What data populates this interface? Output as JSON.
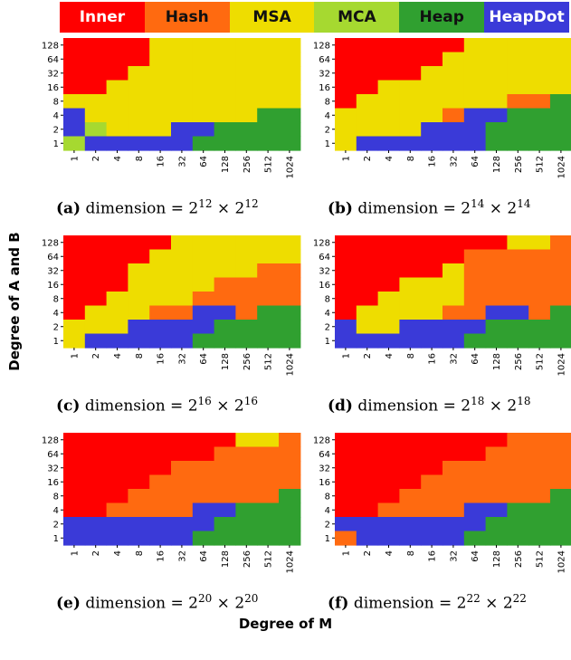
{
  "colors": {
    "Inner": "#ff0000",
    "Hash": "#ff6a10",
    "MSA": "#eedd00",
    "MCA": "#a6d930",
    "Heap": "#30a030",
    "HeapDot": "#3a3ad8"
  },
  "legend": [
    {
      "label": "Inner",
      "bg": "#ff0000",
      "fg": "#ffffff"
    },
    {
      "label": "Hash",
      "bg": "#ff6a10",
      "fg": "#111111"
    },
    {
      "label": "MSA",
      "bg": "#eedd00",
      "fg": "#111111"
    },
    {
      "label": "MCA",
      "bg": "#a6d930",
      "fg": "#111111"
    },
    {
      "label": "Heap",
      "bg": "#30a030",
      "fg": "#111111"
    },
    {
      "label": "HeapDot",
      "bg": "#3a3ad8",
      "fg": "#ffffff"
    }
  ],
  "ylabel": "Degree of A and B",
  "xlabel": "Degree of M",
  "chart_data": [
    {
      "type": "heatmap",
      "caption": {
        "tag": "(a)",
        "text": "dimension = ",
        "base": "2",
        "exp": "12"
      },
      "x": [
        "1",
        "2",
        "4",
        "8",
        "16",
        "32",
        "64",
        "128",
        "256",
        "512",
        "1024"
      ],
      "y": [
        "1",
        "2",
        "4",
        "8",
        "16",
        "32",
        "64",
        "128"
      ],
      "cells": [
        [
          "I",
          "I",
          "I",
          "I",
          "M",
          "M",
          "M",
          "M",
          "M",
          "M",
          "M"
        ],
        [
          "I",
          "I",
          "I",
          "I",
          "M",
          "M",
          "M",
          "M",
          "M",
          "M",
          "M"
        ],
        [
          "I",
          "I",
          "I",
          "M",
          "M",
          "M",
          "M",
          "M",
          "M",
          "M",
          "M"
        ],
        [
          "I",
          "I",
          "M",
          "M",
          "M",
          "M",
          "M",
          "M",
          "M",
          "M",
          "M"
        ],
        [
          "M",
          "M",
          "M",
          "M",
          "M",
          "M",
          "M",
          "M",
          "M",
          "M",
          "M"
        ],
        [
          "D",
          "M",
          "M",
          "M",
          "M",
          "M",
          "M",
          "M",
          "M",
          "G",
          "G"
        ],
        [
          "D",
          "C",
          "M",
          "M",
          "M",
          "D",
          "D",
          "G",
          "G",
          "G",
          "G"
        ],
        [
          "C",
          "D",
          "D",
          "D",
          "D",
          "D",
          "G",
          "G",
          "G",
          "G",
          "G"
        ]
      ]
    },
    {
      "type": "heatmap",
      "caption": {
        "tag": "(b)",
        "text": "dimension = ",
        "base": "2",
        "exp": "14"
      },
      "x": [
        "1",
        "2",
        "4",
        "8",
        "16",
        "32",
        "64",
        "128",
        "256",
        "512",
        "1024"
      ],
      "y": [
        "1",
        "2",
        "4",
        "8",
        "16",
        "32",
        "64",
        "128"
      ],
      "cells": [
        [
          "I",
          "I",
          "I",
          "I",
          "I",
          "I",
          "M",
          "M",
          "M",
          "M",
          "M"
        ],
        [
          "I",
          "I",
          "I",
          "I",
          "I",
          "M",
          "M",
          "M",
          "M",
          "M",
          "M"
        ],
        [
          "I",
          "I",
          "I",
          "I",
          "M",
          "M",
          "M",
          "M",
          "M",
          "M",
          "M"
        ],
        [
          "I",
          "I",
          "M",
          "M",
          "M",
          "M",
          "M",
          "M",
          "M",
          "M",
          "M"
        ],
        [
          "I",
          "M",
          "M",
          "M",
          "M",
          "M",
          "M",
          "M",
          "H",
          "H",
          "G"
        ],
        [
          "M",
          "M",
          "M",
          "M",
          "M",
          "H",
          "D",
          "D",
          "G",
          "G",
          "G"
        ],
        [
          "M",
          "M",
          "M",
          "M",
          "D",
          "D",
          "D",
          "G",
          "G",
          "G",
          "G"
        ],
        [
          "M",
          "D",
          "D",
          "D",
          "D",
          "D",
          "D",
          "G",
          "G",
          "G",
          "G"
        ]
      ]
    },
    {
      "type": "heatmap",
      "caption": {
        "tag": "(c)",
        "text": "dimension = ",
        "base": "2",
        "exp": "16"
      },
      "x": [
        "1",
        "2",
        "4",
        "8",
        "16",
        "32",
        "64",
        "128",
        "256",
        "512",
        "1024"
      ],
      "y": [
        "1",
        "2",
        "4",
        "8",
        "16",
        "32",
        "64",
        "128"
      ],
      "cells": [
        [
          "I",
          "I",
          "I",
          "I",
          "I",
          "M",
          "M",
          "M",
          "M",
          "M",
          "M"
        ],
        [
          "I",
          "I",
          "I",
          "I",
          "M",
          "M",
          "M",
          "M",
          "M",
          "M",
          "M"
        ],
        [
          "I",
          "I",
          "I",
          "M",
          "M",
          "M",
          "M",
          "M",
          "M",
          "H",
          "H"
        ],
        [
          "I",
          "I",
          "I",
          "M",
          "M",
          "M",
          "M",
          "H",
          "H",
          "H",
          "H"
        ],
        [
          "I",
          "I",
          "M",
          "M",
          "M",
          "M",
          "H",
          "H",
          "H",
          "H",
          "H"
        ],
        [
          "I",
          "M",
          "M",
          "M",
          "H",
          "H",
          "D",
          "D",
          "H",
          "G",
          "G"
        ],
        [
          "M",
          "M",
          "M",
          "D",
          "D",
          "D",
          "D",
          "G",
          "G",
          "G",
          "G"
        ],
        [
          "M",
          "D",
          "D",
          "D",
          "D",
          "D",
          "G",
          "G",
          "G",
          "G",
          "G"
        ]
      ]
    },
    {
      "type": "heatmap",
      "caption": {
        "tag": "(d)",
        "text": "dimension = ",
        "base": "2",
        "exp": "18"
      },
      "x": [
        "1",
        "2",
        "4",
        "8",
        "16",
        "32",
        "64",
        "128",
        "256",
        "512",
        "1024"
      ],
      "y": [
        "1",
        "2",
        "4",
        "8",
        "16",
        "32",
        "64",
        "128"
      ],
      "cells": [
        [
          "I",
          "I",
          "I",
          "I",
          "I",
          "I",
          "I",
          "I",
          "M",
          "M",
          "H"
        ],
        [
          "I",
          "I",
          "I",
          "I",
          "I",
          "I",
          "H",
          "H",
          "H",
          "H",
          "H"
        ],
        [
          "I",
          "I",
          "I",
          "I",
          "I",
          "M",
          "H",
          "H",
          "H",
          "H",
          "H"
        ],
        [
          "I",
          "I",
          "I",
          "M",
          "M",
          "M",
          "H",
          "H",
          "H",
          "H",
          "H"
        ],
        [
          "I",
          "I",
          "M",
          "M",
          "M",
          "M",
          "H",
          "H",
          "H",
          "H",
          "H"
        ],
        [
          "I",
          "M",
          "M",
          "M",
          "M",
          "H",
          "H",
          "D",
          "D",
          "H",
          "G"
        ],
        [
          "D",
          "M",
          "M",
          "D",
          "D",
          "D",
          "D",
          "G",
          "G",
          "G",
          "G"
        ],
        [
          "D",
          "D",
          "D",
          "D",
          "D",
          "D",
          "G",
          "G",
          "G",
          "G",
          "G"
        ]
      ]
    },
    {
      "type": "heatmap",
      "caption": {
        "tag": "(e)",
        "text": "dimension = ",
        "base": "2",
        "exp": "20"
      },
      "x": [
        "1",
        "2",
        "4",
        "8",
        "16",
        "32",
        "64",
        "128",
        "256",
        "512",
        "1024"
      ],
      "y": [
        "1",
        "2",
        "4",
        "8",
        "16",
        "32",
        "64",
        "128"
      ],
      "cells": [
        [
          "I",
          "I",
          "I",
          "I",
          "I",
          "I",
          "I",
          "I",
          "M",
          "M",
          "H"
        ],
        [
          "I",
          "I",
          "I",
          "I",
          "I",
          "I",
          "I",
          "H",
          "H",
          "H",
          "H"
        ],
        [
          "I",
          "I",
          "I",
          "I",
          "I",
          "H",
          "H",
          "H",
          "H",
          "H",
          "H"
        ],
        [
          "I",
          "I",
          "I",
          "I",
          "H",
          "H",
          "H",
          "H",
          "H",
          "H",
          "H"
        ],
        [
          "I",
          "I",
          "I",
          "H",
          "H",
          "H",
          "H",
          "H",
          "H",
          "H",
          "G"
        ],
        [
          "I",
          "I",
          "H",
          "H",
          "H",
          "H",
          "D",
          "D",
          "G",
          "G",
          "G"
        ],
        [
          "D",
          "D",
          "D",
          "D",
          "D",
          "D",
          "D",
          "G",
          "G",
          "G",
          "G"
        ],
        [
          "D",
          "D",
          "D",
          "D",
          "D",
          "D",
          "G",
          "G",
          "G",
          "G",
          "G"
        ]
      ]
    },
    {
      "type": "heatmap",
      "caption": {
        "tag": "(f)",
        "text": "dimension = ",
        "base": "2",
        "exp": "22"
      },
      "x": [
        "1",
        "2",
        "4",
        "8",
        "16",
        "32",
        "64",
        "128",
        "256",
        "512",
        "1024"
      ],
      "y": [
        "1",
        "2",
        "4",
        "8",
        "16",
        "32",
        "64",
        "128"
      ],
      "cells": [
        [
          "I",
          "I",
          "I",
          "I",
          "I",
          "I",
          "I",
          "I",
          "H",
          "H",
          "H"
        ],
        [
          "I",
          "I",
          "I",
          "I",
          "I",
          "I",
          "I",
          "H",
          "H",
          "H",
          "H"
        ],
        [
          "I",
          "I",
          "I",
          "I",
          "I",
          "H",
          "H",
          "H",
          "H",
          "H",
          "H"
        ],
        [
          "I",
          "I",
          "I",
          "I",
          "H",
          "H",
          "H",
          "H",
          "H",
          "H",
          "H"
        ],
        [
          "I",
          "I",
          "I",
          "H",
          "H",
          "H",
          "H",
          "H",
          "H",
          "H",
          "G"
        ],
        [
          "I",
          "I",
          "H",
          "H",
          "H",
          "H",
          "D",
          "D",
          "G",
          "G",
          "G"
        ],
        [
          "D",
          "D",
          "D",
          "D",
          "D",
          "D",
          "D",
          "G",
          "G",
          "G",
          "G"
        ],
        [
          "H",
          "D",
          "D",
          "D",
          "D",
          "D",
          "G",
          "G",
          "G",
          "G",
          "G"
        ]
      ]
    }
  ]
}
